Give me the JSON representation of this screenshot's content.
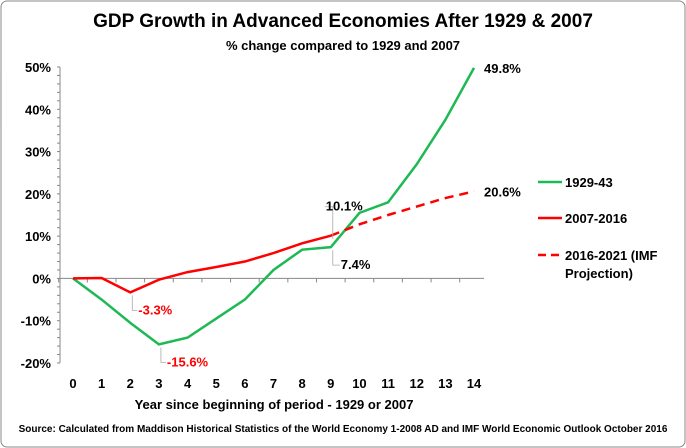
{
  "chart_data": {
    "type": "line",
    "title": "GDP Growth in Advanced Economies After 1929 & 2007",
    "subtitle": "% change compared to 1929 and 2007",
    "xlabel": "Year since beginning of period - 1929 or 2007",
    "ylabel": "",
    "source": "Source: Calculated from Maddison Historical Statistics of the World Economy 1-2008 AD and IMF World Economic Outlook October 2016",
    "x": [
      0,
      1,
      2,
      3,
      4,
      5,
      6,
      7,
      8,
      9,
      10,
      11,
      12,
      13,
      14
    ],
    "xlim": [
      0,
      14
    ],
    "ylim": [
      -20,
      50
    ],
    "yticks": [
      "-20%",
      "-10%",
      "0%",
      "10%",
      "20%",
      "30%",
      "40%",
      "50%"
    ],
    "grid": false,
    "legend_position": "right",
    "series": [
      {
        "name": "1929-43",
        "color": "#1db954",
        "dash": false,
        "x": [
          0,
          1,
          2,
          3,
          4,
          5,
          6,
          7,
          8,
          9,
          10,
          11,
          12,
          13,
          14
        ],
        "values": [
          0,
          -5,
          -10.5,
          -15.6,
          -14,
          -9.5,
          -5,
          2,
          6.8,
          7.4,
          15.5,
          18,
          27,
          37.5,
          49.8
        ]
      },
      {
        "name": "2007-2016",
        "color": "#ff0000",
        "dash": false,
        "x": [
          0,
          1,
          2,
          3,
          4,
          5,
          6,
          7,
          8,
          9
        ],
        "values": [
          0,
          0.1,
          -3.3,
          -0.3,
          1.5,
          2.7,
          4,
          6,
          8.3,
          10.1
        ]
      },
      {
        "name": "2016-2021 (IMF Projection)",
        "color": "#ff0000",
        "dash": true,
        "x": [
          9,
          10,
          11,
          12,
          13,
          14
        ],
        "values": [
          10.1,
          12.8,
          15,
          17,
          19,
          20.6
        ]
      }
    ],
    "annotations": [
      {
        "text": "-3.3%",
        "x": 2,
        "y": -3.3,
        "color": "#ff0000"
      },
      {
        "text": "-15.6%",
        "x": 3,
        "y": -15.6,
        "color": "#ff0000"
      },
      {
        "text": "10.1%",
        "x": 9,
        "y": 10.1,
        "color": "#000000"
      },
      {
        "text": "7.4%",
        "x": 9,
        "y": 7.4,
        "color": "#000000"
      },
      {
        "text": "49.8%",
        "x": 14,
        "y": 49.8,
        "color": "#000000"
      },
      {
        "text": "20.6%",
        "x": 14,
        "y": 20.6,
        "color": "#000000"
      }
    ]
  }
}
